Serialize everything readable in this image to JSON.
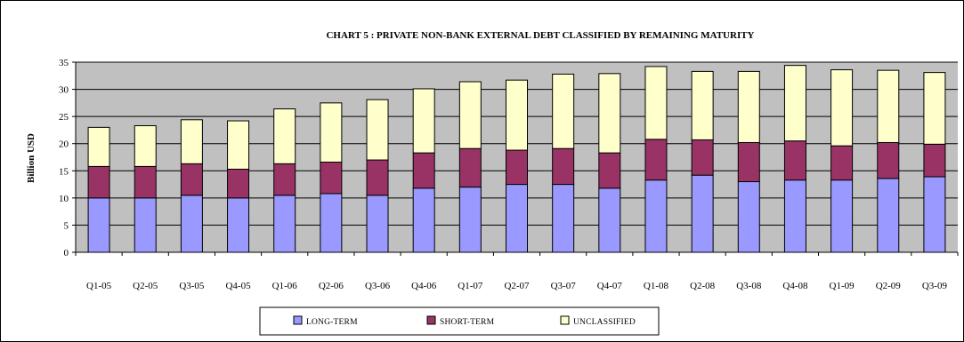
{
  "chart_data": {
    "type": "bar",
    "stacked": true,
    "title": "CHART  5 : PRIVATE NON-BANK EXTERNAL DEBT CLASSIFIED BY REMAINING MATURITY",
    "xlabel": "",
    "ylabel": "Billion USD",
    "ylim": [
      0,
      35
    ],
    "yticks": [
      0,
      5,
      10,
      15,
      20,
      25,
      30,
      35
    ],
    "grid": true,
    "legend_position": "bottom",
    "categories": [
      "Q1-05",
      "Q2-05",
      "Q3-05",
      "Q4-05",
      "Q1-06",
      "Q2-06",
      "Q3-06",
      "Q4-06",
      "Q1-07",
      "Q2-07",
      "Q3-07",
      "Q4-07",
      "Q1-08",
      "Q2-08",
      "Q3-08",
      "Q4-08",
      "Q1-09",
      "Q2-09",
      "Q3-09"
    ],
    "series": [
      {
        "name": "LONG-TERM",
        "color": "#9999ff",
        "values": [
          10.0,
          10.0,
          10.5,
          10.0,
          10.5,
          10.8,
          10.5,
          11.8,
          12.0,
          12.5,
          12.5,
          11.8,
          13.3,
          14.2,
          13.0,
          13.3,
          13.3,
          13.6,
          13.9
        ]
      },
      {
        "name": "SHORT-TERM",
        "color": "#993366",
        "values": [
          5.8,
          5.8,
          5.8,
          5.3,
          5.8,
          5.8,
          6.5,
          6.5,
          7.1,
          6.3,
          6.6,
          6.5,
          7.5,
          6.5,
          7.2,
          7.2,
          6.3,
          6.6,
          6.0
        ]
      },
      {
        "name": "UNCLASSIFIED",
        "color": "#ffffcc",
        "values": [
          7.2,
          7.5,
          8.1,
          8.9,
          10.1,
          10.9,
          11.1,
          11.8,
          12.3,
          12.9,
          13.7,
          14.6,
          13.4,
          12.6,
          13.1,
          13.9,
          14.0,
          13.3,
          13.2
        ]
      }
    ],
    "colors": {
      "plot_background": "#c0c0c0",
      "gridline": "#000000",
      "bar_outline": "#000000"
    }
  }
}
